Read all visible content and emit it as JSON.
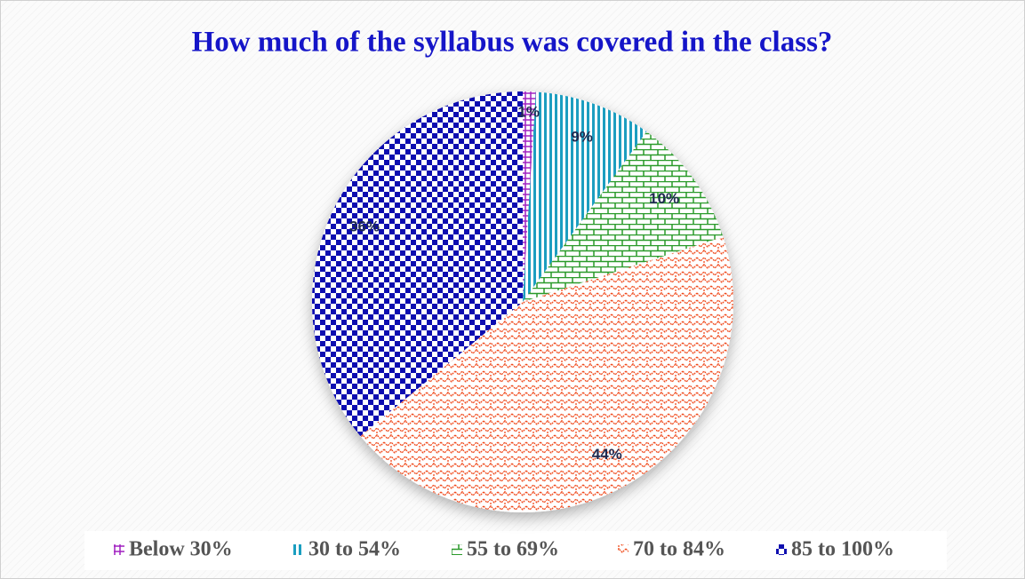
{
  "chart_data": {
    "type": "pie",
    "title": "How much of the syllabus was covered in the class?",
    "categories": [
      "Below 30%",
      "30 to 54%",
      "55 to 69%",
      "70 to 84%",
      "85 to 100%"
    ],
    "values": [
      1,
      9,
      10,
      44,
      36
    ],
    "value_labels": [
      "1%",
      "9%",
      "10%",
      "44%",
      "36%"
    ],
    "colors": [
      "#a020c0",
      "#1a9ec0",
      "#2a9a2a",
      "#f04a1a",
      "#1010b0"
    ],
    "legend": "bottom"
  }
}
